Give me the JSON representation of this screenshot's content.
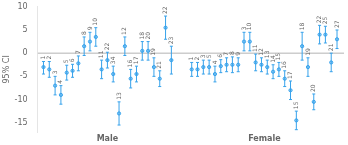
{
  "chart_data": {
    "type": "errorbar",
    "ylabel": "95% CI",
    "ylim": [
      -17,
      10
    ],
    "yticks": [
      -15,
      -10,
      -5,
      0,
      5,
      10
    ],
    "grid": false,
    "hline": 0,
    "groups": [
      {
        "name": "Male",
        "categories": [
          "1",
          "2",
          "3",
          "4",
          "5",
          "6",
          "7",
          "8",
          "9",
          "10",
          "11",
          "22",
          "34",
          "13",
          "12",
          "16",
          "17",
          "18",
          "20",
          "19",
          "21",
          "22",
          "23"
        ],
        "values": [
          -3.0,
          -3.5,
          -7.0,
          -9.0,
          -4.2,
          -3.8,
          -2.2,
          1.5,
          2.5,
          3.5,
          -3.5,
          -1.5,
          -4.5,
          -13.0,
          1.5,
          -5.5,
          -4.5,
          0.5,
          0.5,
          -3.0,
          -5.5,
          5.5,
          -1.5
        ],
        "lo": [
          -4.5,
          -5.2,
          -9.0,
          -11.0,
          -5.8,
          -5.2,
          -3.8,
          -0.5,
          0.5,
          1.5,
          -5.5,
          -3.2,
          -6.2,
          -15.5,
          -0.5,
          -7.5,
          -6.2,
          -1.5,
          -1.5,
          -5.0,
          -7.2,
          3.0,
          -4.5
        ],
        "hi": [
          -1.8,
          -1.8,
          -5.0,
          -7.0,
          -2.6,
          -2.4,
          -0.6,
          3.5,
          4.5,
          5.5,
          -1.5,
          0.2,
          -2.8,
          -10.5,
          3.5,
          -3.5,
          -2.8,
          2.5,
          2.5,
          -1.0,
          -3.8,
          8.0,
          1.5
        ]
      },
      {
        "name": "Female",
        "categories": [
          "1",
          "2",
          "3",
          "5",
          "4",
          "6",
          "7",
          "8",
          "9",
          "3",
          "10",
          "11",
          "12",
          "13",
          "14",
          "15",
          "16",
          "17",
          "15",
          "18",
          "19",
          "20",
          "22",
          "25",
          "21",
          "27"
        ],
        "values": [
          -3.5,
          -3.5,
          -3.0,
          -3.0,
          -4.5,
          -2.8,
          -2.5,
          -2.5,
          -2.5,
          2.5,
          2.5,
          -2.0,
          -2.5,
          -3.0,
          -4.0,
          -3.5,
          -5.5,
          -8.0,
          -14.5,
          1.5,
          -3.0,
          -10.5,
          4.0,
          4.0,
          -2.0,
          3.0
        ],
        "lo": [
          -5.0,
          -5.0,
          -4.5,
          -4.5,
          -6.2,
          -4.2,
          -4.0,
          -4.2,
          -4.0,
          0.5,
          0.5,
          -3.8,
          -4.0,
          -4.5,
          -5.5,
          -5.0,
          -7.2,
          -10.0,
          -16.5,
          -1.5,
          -5.0,
          -12.2,
          2.0,
          2.2,
          -4.0,
          1.0
        ],
        "hi": [
          -2.0,
          -2.0,
          -1.5,
          -1.5,
          -2.8,
          -1.4,
          -1.0,
          -0.8,
          -1.0,
          4.5,
          4.5,
          -0.2,
          -1.0,
          -1.5,
          -2.5,
          -2.0,
          -3.8,
          -6.0,
          -12.5,
          4.5,
          -1.0,
          -8.8,
          6.0,
          5.8,
          0.0,
          5.0
        ]
      }
    ]
  }
}
